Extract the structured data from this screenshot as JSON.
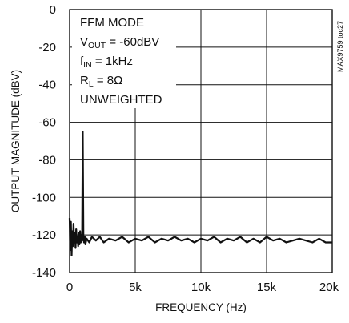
{
  "chart_data": {
    "type": "line",
    "title": "",
    "xlabel": "FREQUENCY (Hz)",
    "ylabel": "OUTPUT MAGNITUDE (dBV)",
    "xlim": [
      0,
      20000
    ],
    "ylim": [
      -140,
      0
    ],
    "grid": true,
    "x_ticks": [
      0,
      5000,
      10000,
      15000,
      20000
    ],
    "x_tick_labels": [
      "0",
      "5k",
      "10k",
      "15k",
      "20k"
    ],
    "y_ticks": [
      0,
      -20,
      -40,
      -60,
      -80,
      -100,
      -120,
      -140
    ],
    "y_tick_labels": [
      "0",
      "-20",
      "-40",
      "-60",
      "-80",
      "-100",
      "-120",
      "-140"
    ],
    "annotations": {
      "mode": "FFM MODE",
      "vout_main": "V",
      "vout_sub": "OUT",
      "vout_value": " = -60dBV",
      "fin_main": "f",
      "fin_sub": "IN",
      "fin_value": " = 1kHz",
      "rl_main": "R",
      "rl_sub": "L",
      "rl_value": " = 8Ω",
      "weighting": "UNWEIGHTED"
    },
    "figure_code": "MAX9759 toc27",
    "series": [
      {
        "x": [
          0,
          50,
          100,
          150,
          200,
          250,
          300,
          350,
          400,
          450,
          500,
          550,
          600,
          650,
          700,
          750,
          800,
          850,
          900,
          950,
          1000,
          1050,
          1100,
          1150,
          1200,
          1300,
          1500,
          1700,
          2000,
          2300,
          2600,
          3000,
          3500,
          4000,
          4500,
          5000,
          5500,
          6000,
          6500,
          7000,
          7500,
          8000,
          8500,
          9000,
          9500,
          10000,
          10500,
          11000,
          11500,
          12000,
          12500,
          13000,
          13500,
          14000,
          14500,
          15000,
          15500,
          16000,
          16500,
          17000,
          17500,
          18000,
          18500,
          19000,
          19500,
          20000
        ],
        "y": [
          -111,
          -128,
          -113,
          -131,
          -118,
          -126,
          -114,
          -124,
          -119,
          -127,
          -117,
          -124,
          -121,
          -126,
          -119,
          -125,
          -118,
          -124,
          -120,
          -123,
          -65,
          -120,
          -124,
          -121,
          -125,
          -122,
          -124,
          -121,
          -123,
          -121,
          -124,
          -122,
          -123,
          -121,
          -124,
          -122,
          -123,
          -121,
          -124,
          -122,
          -123,
          -121,
          -123,
          -122,
          -124,
          -122,
          -123,
          -121,
          -124,
          -122,
          -123,
          -121,
          -124,
          -122,
          -124,
          -121,
          -123,
          -122,
          -124,
          -123,
          -122,
          -123,
          -124,
          -122,
          -124,
          -124
        ]
      }
    ]
  }
}
